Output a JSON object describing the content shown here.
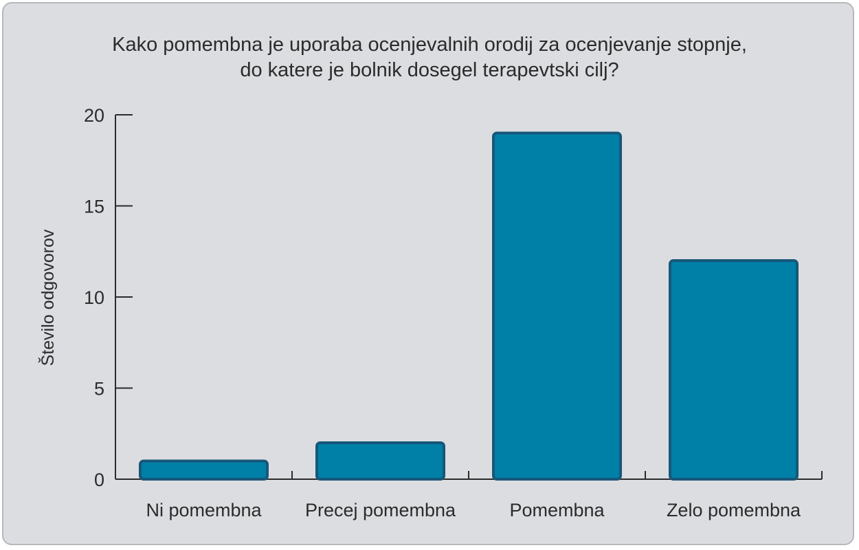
{
  "chart_data": {
    "type": "bar",
    "title_lines": [
      "Kako pomembna je uporaba ocenjevalnih orodij za ocenjevanje stopnje,",
      "do katere je bolnik dosegel terapevtski cilj?"
    ],
    "xlabel": "",
    "ylabel": "Število odgovorov",
    "categories": [
      "Ni pomembna",
      "Precej pomembna",
      "Pomembna",
      "Zelo pomembna"
    ],
    "values": [
      1,
      2,
      19,
      12
    ],
    "ylim": [
      0,
      20
    ],
    "yticks": [
      0,
      5,
      10,
      15,
      20
    ],
    "grid": false,
    "legend": "none",
    "colors": {
      "bar_fill": "#0080a6",
      "bar_stroke": "#17577a",
      "background": "#dcdde0"
    }
  }
}
